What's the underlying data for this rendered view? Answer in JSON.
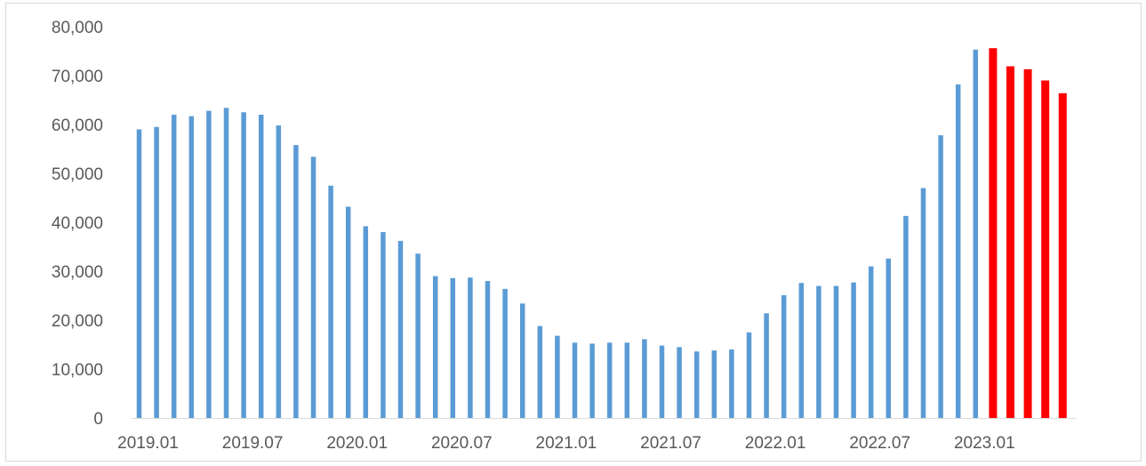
{
  "chart_data": {
    "type": "bar",
    "title": "",
    "xlabel": "",
    "ylabel": "",
    "ylim": [
      0,
      80000
    ],
    "yticks": [
      0,
      10000,
      20000,
      30000,
      40000,
      50000,
      60000,
      70000,
      80000
    ],
    "ytick_labels": [
      "0",
      "10,000",
      "20,000",
      "30,000",
      "40,000",
      "50,000",
      "60,000",
      "70,000",
      "80,000"
    ],
    "xtick_labels": [
      "2019.01",
      "2019.07",
      "2020.01",
      "2020.07",
      "2021.01",
      "2021.07",
      "2022.01",
      "2022.07",
      "2023.01"
    ],
    "grid": false,
    "legend": "none",
    "colors": {
      "actual": "#5b9bd5",
      "highlight": "#ff0000"
    },
    "categories": [
      "2019.01",
      "2019.02",
      "2019.03",
      "2019.04",
      "2019.05",
      "2019.06",
      "2019.07",
      "2019.08",
      "2019.09",
      "2019.10",
      "2019.11",
      "2019.12",
      "2020.01",
      "2020.02",
      "2020.03",
      "2020.04",
      "2020.05",
      "2020.06",
      "2020.07",
      "2020.08",
      "2020.09",
      "2020.10",
      "2020.11",
      "2020.12",
      "2021.01",
      "2021.02",
      "2021.03",
      "2021.04",
      "2021.05",
      "2021.06",
      "2021.07",
      "2021.08",
      "2021.09",
      "2021.10",
      "2021.11",
      "2021.12",
      "2022.01",
      "2022.02",
      "2022.03",
      "2022.04",
      "2022.05",
      "2022.06",
      "2022.07",
      "2022.08",
      "2022.09",
      "2022.10",
      "2022.11",
      "2022.12",
      "2023.01",
      "2023.02",
      "2023.03",
      "2023.04",
      "2023.05",
      "2023.06"
    ],
    "series": [
      {
        "values": [
          59000,
          59500,
          62000,
          61700,
          62800,
          63400,
          62500,
          62000,
          59800,
          55800,
          53400,
          47500,
          43200,
          39200,
          38000,
          36200,
          33600,
          29000,
          28600,
          28700,
          28000,
          26400,
          23400,
          18800,
          16800,
          15400,
          15200,
          15400,
          15400,
          16100,
          14800,
          14500,
          13600,
          13800,
          14000,
          17500,
          21400,
          25100,
          27600,
          27000,
          27000,
          27700,
          31000,
          32600,
          41300,
          47000,
          57800,
          68200,
          75300,
          75600,
          71900,
          71300,
          69000,
          66400
        ],
        "highlight_from_index": 49
      }
    ]
  }
}
